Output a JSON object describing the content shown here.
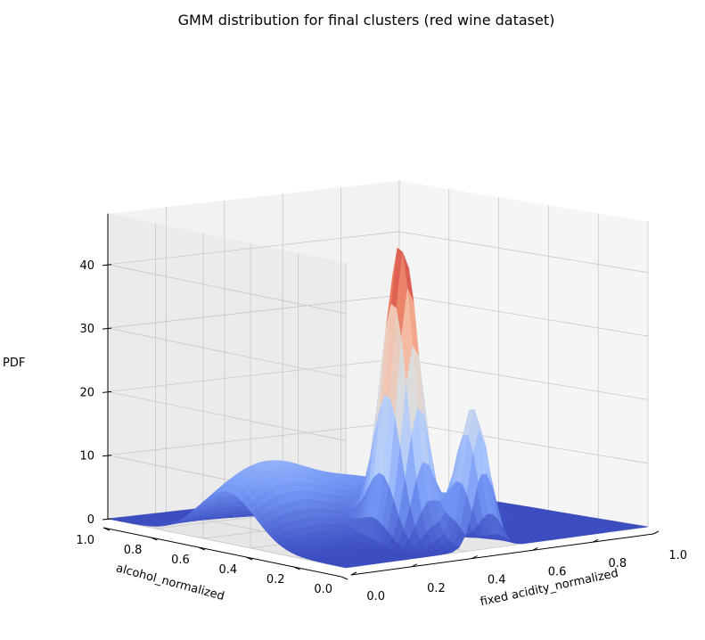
{
  "chart_data": {
    "type": "surface3d",
    "title": "GMM distribution for final clusters (red wine dataset)",
    "xlabel": "fixed acidity_normalized",
    "ylabel": "alcohol_normalized",
    "zlabel": "PDF",
    "xlim": [
      0.0,
      1.0
    ],
    "ylim": [
      0.0,
      1.0
    ],
    "zlim": [
      0,
      48
    ],
    "x_ticks": [
      0.0,
      0.2,
      0.4,
      0.6,
      0.8,
      1.0
    ],
    "x_tick_labels": [
      "0.0",
      "0.2",
      "0.4",
      "0.6",
      "0.8",
      "1.0"
    ],
    "y_ticks": [
      0.0,
      0.2,
      0.4,
      0.6,
      0.8,
      1.0
    ],
    "y_tick_labels": [
      "0.0",
      "0.2",
      "0.4",
      "0.6",
      "0.8",
      "1.0"
    ],
    "z_ticks": [
      0,
      10,
      20,
      30,
      40
    ],
    "z_tick_labels": [
      "0",
      "10",
      "20",
      "30",
      "40"
    ],
    "colormap": "coolwarm",
    "colormap_colors": [
      "#3b4cc0",
      "#7396f5",
      "#b0cbfc",
      "#dddcdc",
      "#f6bfa6",
      "#ea7b60",
      "#b40426"
    ],
    "grid": true,
    "pane_color": "#f2f2f2",
    "grid_color": "#c8c8c8",
    "components": [
      {
        "mean_x": 0.36,
        "mean_y": 0.22,
        "sigma_x": 0.04,
        "sigma_y": 0.06,
        "peak": 47
      },
      {
        "mean_x": 0.46,
        "mean_y": 0.05,
        "sigma_x": 0.035,
        "sigma_y": 0.05,
        "peak": 22
      },
      {
        "mean_x": 0.12,
        "mean_y": 0.5,
        "sigma_x": 0.15,
        "sigma_y": 0.12,
        "peak": 11
      },
      {
        "mean_x": 0.46,
        "mean_y": 0.5,
        "sigma_x": 0.17,
        "sigma_y": 0.1,
        "peak": 7
      }
    ]
  }
}
